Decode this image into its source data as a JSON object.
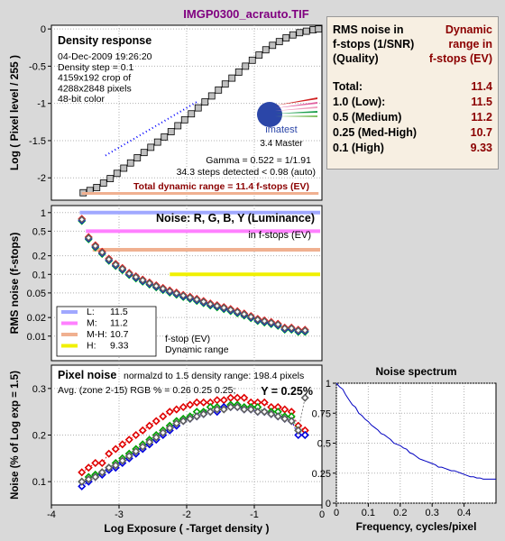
{
  "title": "IMGP0300_acrauto.TIF",
  "colors": {
    "background": "#d9d9d9",
    "plot_bg": "#ffffff",
    "title": "#800080",
    "accent": "#8b0000",
    "L": "#a0a8ff",
    "M": "#ff80ff",
    "MH": "#f0b090",
    "H": "#f0f000"
  },
  "info_box": {
    "header_left": [
      "RMS noise in",
      "f-stops (1/SNR)",
      "(Quality)"
    ],
    "header_right": [
      "Dynamic",
      "range in",
      "f-stops (EV)"
    ],
    "rows": [
      {
        "label": "Total:",
        "value": "11.4"
      },
      {
        "label": "1.0   (Low):",
        "value": "11.5"
      },
      {
        "label": "0.5   (Medium)",
        "value": "11.2"
      },
      {
        "label": "0.25 (Med-High)",
        "value": "10.7"
      },
      {
        "label": "0.1   (High)",
        "value": "9.33"
      }
    ]
  },
  "density_panel": {
    "title": "Density response",
    "info": [
      "04-Dec-2009 19:26:20",
      "Density step = 0.1",
      "4159x192 crop of",
      "4288x2848 pixels",
      "48-bit color"
    ],
    "logo": "imatest",
    "version": "3.4  Master",
    "gamma": "Gamma = 0.522 = 1/1.91",
    "steps": "34.3 steps detected < 0.98 (auto)",
    "total": "Total dynamic range = 11.4 f-stops (EV)"
  },
  "noise_panel": {
    "title": "Noise: R, G, B, Y (Luminance)",
    "subtitle": "in f-stops (EV)",
    "legend": [
      {
        "key": "L:",
        "value": "11.5",
        "color": "#a0a8ff"
      },
      {
        "key": "M:",
        "value": "11.2",
        "color": "#ff80ff"
      },
      {
        "key": "M-H:",
        "value": "10.7",
        "color": "#f0b090"
      },
      {
        "key": "H:",
        "value": "9.33",
        "color": "#f0f000"
      }
    ],
    "note1": "f-stop (EV)",
    "note2": "Dynamic range"
  },
  "pixel_panel": {
    "title": "Pixel noise",
    "title_note": "normalzd to 1.5 density range: 198.4 pixels",
    "avg": "Avg. (zone 2-15) RGB % = 0.26  0.25  0.25;",
    "y_pct": "Y = 0.25%"
  },
  "chart_data": [
    {
      "type": "scatter",
      "name_ref": "density",
      "ylabel": "Log ( Pixel level / 255 )",
      "xlim": [
        -4,
        0
      ],
      "ylim": [
        -2.3,
        0.05
      ],
      "yticks": [
        0,
        -0.5,
        -1,
        -1.5,
        -2
      ],
      "ytick_labels": [
        "0",
        "-0.5",
        "-1",
        "-1.5",
        "-2"
      ],
      "x": [
        -3.53,
        -3.43,
        -3.33,
        -3.23,
        -3.13,
        -3.03,
        -2.93,
        -2.83,
        -2.73,
        -2.63,
        -2.53,
        -2.43,
        -2.33,
        -2.23,
        -2.13,
        -2.03,
        -1.93,
        -1.83,
        -1.73,
        -1.63,
        -1.53,
        -1.43,
        -1.33,
        -1.23,
        -1.13,
        -1.03,
        -0.93,
        -0.83,
        -0.73,
        -0.63,
        -0.53,
        -0.43,
        -0.33,
        -0.23,
        -0.13,
        -0.05
      ],
      "y": [
        -2.2,
        -2.17,
        -2.13,
        -2.07,
        -2.01,
        -1.94,
        -1.87,
        -1.8,
        -1.73,
        -1.66,
        -1.59,
        -1.52,
        -1.45,
        -1.38,
        -1.3,
        -1.22,
        -1.14,
        -1.06,
        -0.98,
        -0.9,
        -0.82,
        -0.74,
        -0.66,
        -0.58,
        -0.5,
        -0.42,
        -0.35,
        -0.28,
        -0.22,
        -0.17,
        -0.12,
        -0.08,
        -0.05,
        -0.03,
        -0.01,
        0.0
      ],
      "fit_line": {
        "x": [
          -3.2,
          -1.85
        ],
        "y": [
          -1.7,
          -0.98
        ]
      }
    },
    {
      "type": "scatter",
      "name_ref": "noise",
      "ylabel": "RMS noise (f-stops)",
      "yscale": "log",
      "xlim": [
        -4,
        0
      ],
      "ylim": [
        0.004,
        1.3
      ],
      "yticks": [
        1,
        0.5,
        0.2,
        0.1,
        0.05,
        0.02,
        0.01
      ],
      "ytick_labels": [
        "1",
        "0.5",
        "0.2",
        "0.1",
        "0.05",
        "0.02",
        "0.01"
      ],
      "thresholds": [
        {
          "value": 1.0,
          "x_start": -3.58,
          "color": "#a0a8ff"
        },
        {
          "value": 0.5,
          "x_start": -3.49,
          "color": "#ff80ff"
        },
        {
          "value": 0.25,
          "x_start": -3.39,
          "color": "#f0b090"
        },
        {
          "value": 0.1,
          "x_start": -2.25,
          "color": "#f0f000"
        }
      ],
      "x": [
        -3.55,
        -3.45,
        -3.35,
        -3.25,
        -3.15,
        -3.05,
        -2.95,
        -2.85,
        -2.75,
        -2.65,
        -2.55,
        -2.45,
        -2.35,
        -2.25,
        -2.15,
        -2.05,
        -1.95,
        -1.85,
        -1.75,
        -1.65,
        -1.55,
        -1.45,
        -1.35,
        -1.25,
        -1.15,
        -1.05,
        -0.95,
        -0.85,
        -0.75,
        -0.65,
        -0.55,
        -0.45,
        -0.35,
        -0.25
      ],
      "y": [
        0.75,
        0.38,
        0.28,
        0.22,
        0.17,
        0.14,
        0.12,
        0.1,
        0.088,
        0.078,
        0.07,
        0.063,
        0.057,
        0.052,
        0.048,
        0.044,
        0.041,
        0.038,
        0.035,
        0.032,
        0.03,
        0.028,
        0.026,
        0.024,
        0.022,
        0.02,
        0.018,
        0.017,
        0.016,
        0.015,
        0.013,
        0.013,
        0.012,
        0.012
      ]
    },
    {
      "type": "scatter",
      "name_ref": "pixel",
      "ylabel": "Noise (% of Log exp = 1.5)",
      "xlabel": "Log Exposure ( -Target density )",
      "xlim": [
        -4,
        0
      ],
      "ylim": [
        0.05,
        0.35
      ],
      "xticks": [
        -4,
        -3,
        -2,
        -1,
        0
      ],
      "xtick_labels": [
        "-4",
        "-3",
        "-2",
        "-1",
        "0"
      ],
      "yticks": [
        0.1,
        0.2,
        0.3
      ],
      "ytick_labels": [
        "0.1",
        "0.2",
        "0.3"
      ],
      "x": [
        -3.55,
        -3.45,
        -3.35,
        -3.25,
        -3.15,
        -3.05,
        -2.95,
        -2.85,
        -2.75,
        -2.65,
        -2.55,
        -2.45,
        -2.35,
        -2.25,
        -2.15,
        -2.05,
        -1.95,
        -1.85,
        -1.75,
        -1.65,
        -1.55,
        -1.45,
        -1.35,
        -1.25,
        -1.15,
        -1.05,
        -0.95,
        -0.85,
        -0.75,
        -0.65,
        -0.55,
        -0.45,
        -0.35,
        -0.25
      ],
      "series": [
        {
          "name": "R",
          "color": "#e00000",
          "values": [
            0.12,
            0.13,
            0.14,
            0.14,
            0.16,
            0.17,
            0.18,
            0.19,
            0.2,
            0.21,
            0.22,
            0.23,
            0.24,
            0.25,
            0.255,
            0.26,
            0.265,
            0.27,
            0.27,
            0.27,
            0.275,
            0.275,
            0.28,
            0.28,
            0.28,
            0.27,
            0.27,
            0.27,
            0.26,
            0.26,
            0.255,
            0.25,
            0.22,
            0.21
          ]
        },
        {
          "name": "G",
          "color": "#00a000",
          "values": [
            0.1,
            0.11,
            0.115,
            0.12,
            0.13,
            0.14,
            0.15,
            0.16,
            0.17,
            0.18,
            0.19,
            0.2,
            0.21,
            0.22,
            0.23,
            0.235,
            0.24,
            0.25,
            0.25,
            0.26,
            0.26,
            0.26,
            0.265,
            0.265,
            0.26,
            0.26,
            0.26,
            0.25,
            0.25,
            0.25,
            0.24,
            0.24,
            0.21,
            0.2
          ]
        },
        {
          "name": "B",
          "color": "#0000e0",
          "values": [
            0.09,
            0.1,
            0.11,
            0.115,
            0.125,
            0.13,
            0.14,
            0.15,
            0.16,
            0.17,
            0.18,
            0.19,
            0.2,
            0.21,
            0.22,
            0.23,
            0.235,
            0.24,
            0.245,
            0.25,
            0.25,
            0.26,
            0.26,
            0.26,
            0.255,
            0.255,
            0.25,
            0.25,
            0.245,
            0.24,
            0.235,
            0.23,
            0.2,
            0.2
          ]
        },
        {
          "name": "Y",
          "color": "#606060",
          "values": [
            0.1,
            0.105,
            0.11,
            0.12,
            0.13,
            0.135,
            0.145,
            0.155,
            0.165,
            0.175,
            0.185,
            0.195,
            0.205,
            0.215,
            0.225,
            0.23,
            0.235,
            0.24,
            0.245,
            0.25,
            0.255,
            0.255,
            0.26,
            0.26,
            0.255,
            0.255,
            0.25,
            0.25,
            0.245,
            0.24,
            0.235,
            0.23,
            0.21,
            0.28
          ]
        }
      ]
    },
    {
      "type": "line",
      "name_ref": "spectrum",
      "title": "Noise spectrum",
      "xlabel": "Frequency, cycles/pixel",
      "xlim": [
        0,
        0.5
      ],
      "ylim": [
        0,
        1
      ],
      "xticks": [
        0,
        0.1,
        0.2,
        0.3,
        0.4
      ],
      "xtick_labels": [
        "0",
        "0.1",
        "0.2",
        "0.3",
        "0.4"
      ],
      "yticks": [
        0,
        0.25,
        0.5,
        0.75,
        1
      ],
      "ytick_labels": [
        "0",
        "0.25",
        "0.5",
        "0.75",
        "1"
      ],
      "x": [
        0,
        0.01,
        0.02,
        0.03,
        0.04,
        0.05,
        0.06,
        0.07,
        0.08,
        0.09,
        0.1,
        0.11,
        0.12,
        0.13,
        0.14,
        0.15,
        0.16,
        0.17,
        0.18,
        0.19,
        0.2,
        0.21,
        0.22,
        0.23,
        0.24,
        0.25,
        0.26,
        0.27,
        0.28,
        0.29,
        0.3,
        0.31,
        0.32,
        0.33,
        0.34,
        0.35,
        0.36,
        0.37,
        0.38,
        0.39,
        0.4,
        0.41,
        0.42,
        0.43,
        0.44,
        0.45,
        0.46,
        0.47,
        0.48,
        0.49,
        0.5
      ],
      "values": [
        1.0,
        0.97,
        0.95,
        0.9,
        0.86,
        0.82,
        0.8,
        0.75,
        0.73,
        0.7,
        0.68,
        0.65,
        0.63,
        0.61,
        0.58,
        0.57,
        0.55,
        0.53,
        0.5,
        0.49,
        0.48,
        0.46,
        0.45,
        0.42,
        0.41,
        0.39,
        0.37,
        0.36,
        0.35,
        0.34,
        0.33,
        0.32,
        0.3,
        0.3,
        0.29,
        0.28,
        0.27,
        0.27,
        0.26,
        0.25,
        0.24,
        0.23,
        0.22,
        0.22,
        0.21,
        0.21,
        0.2,
        0.2,
        0.2,
        0.2,
        0.2
      ]
    }
  ]
}
